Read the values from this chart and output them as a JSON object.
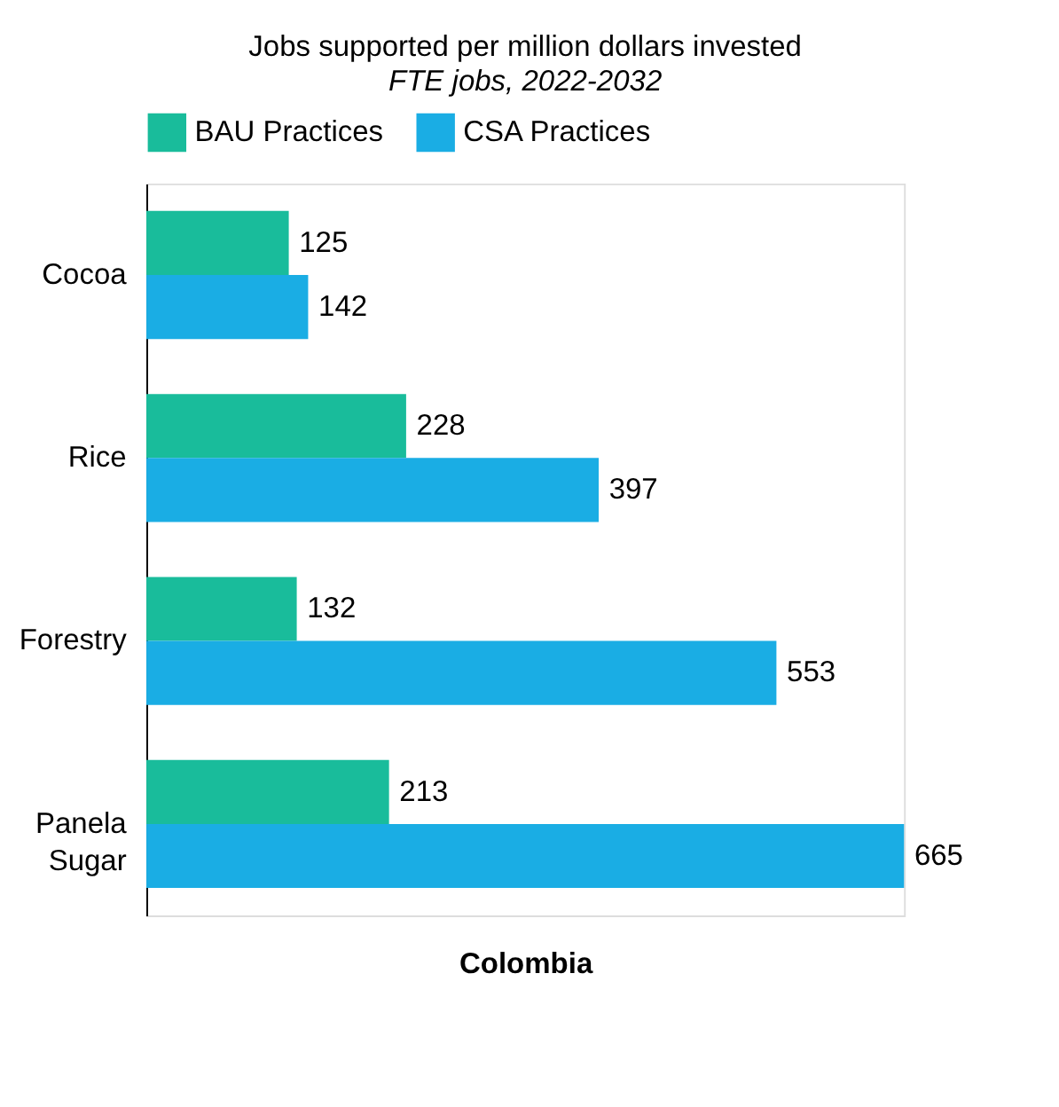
{
  "chart_data": {
    "type": "bar",
    "orientation": "horizontal",
    "title": "Jobs supported per million dollars invested",
    "subtitle": "FTE jobs, 2022-2032",
    "xlabel": "Colombia",
    "categories": [
      "Cocoa",
      "Rice",
      "Forestry",
      "Panela Sugar"
    ],
    "series": [
      {
        "name": "BAU Practices",
        "color": "#19bc9b",
        "values": [
          125,
          228,
          132,
          213
        ]
      },
      {
        "name": "CSA Practices",
        "color": "#1aade4",
        "values": [
          142,
          397,
          553,
          665
        ]
      }
    ],
    "xlim": [
      0,
      665
    ],
    "tick_labels": "y",
    "data_labels": true,
    "legend": "top",
    "grid": false
  }
}
